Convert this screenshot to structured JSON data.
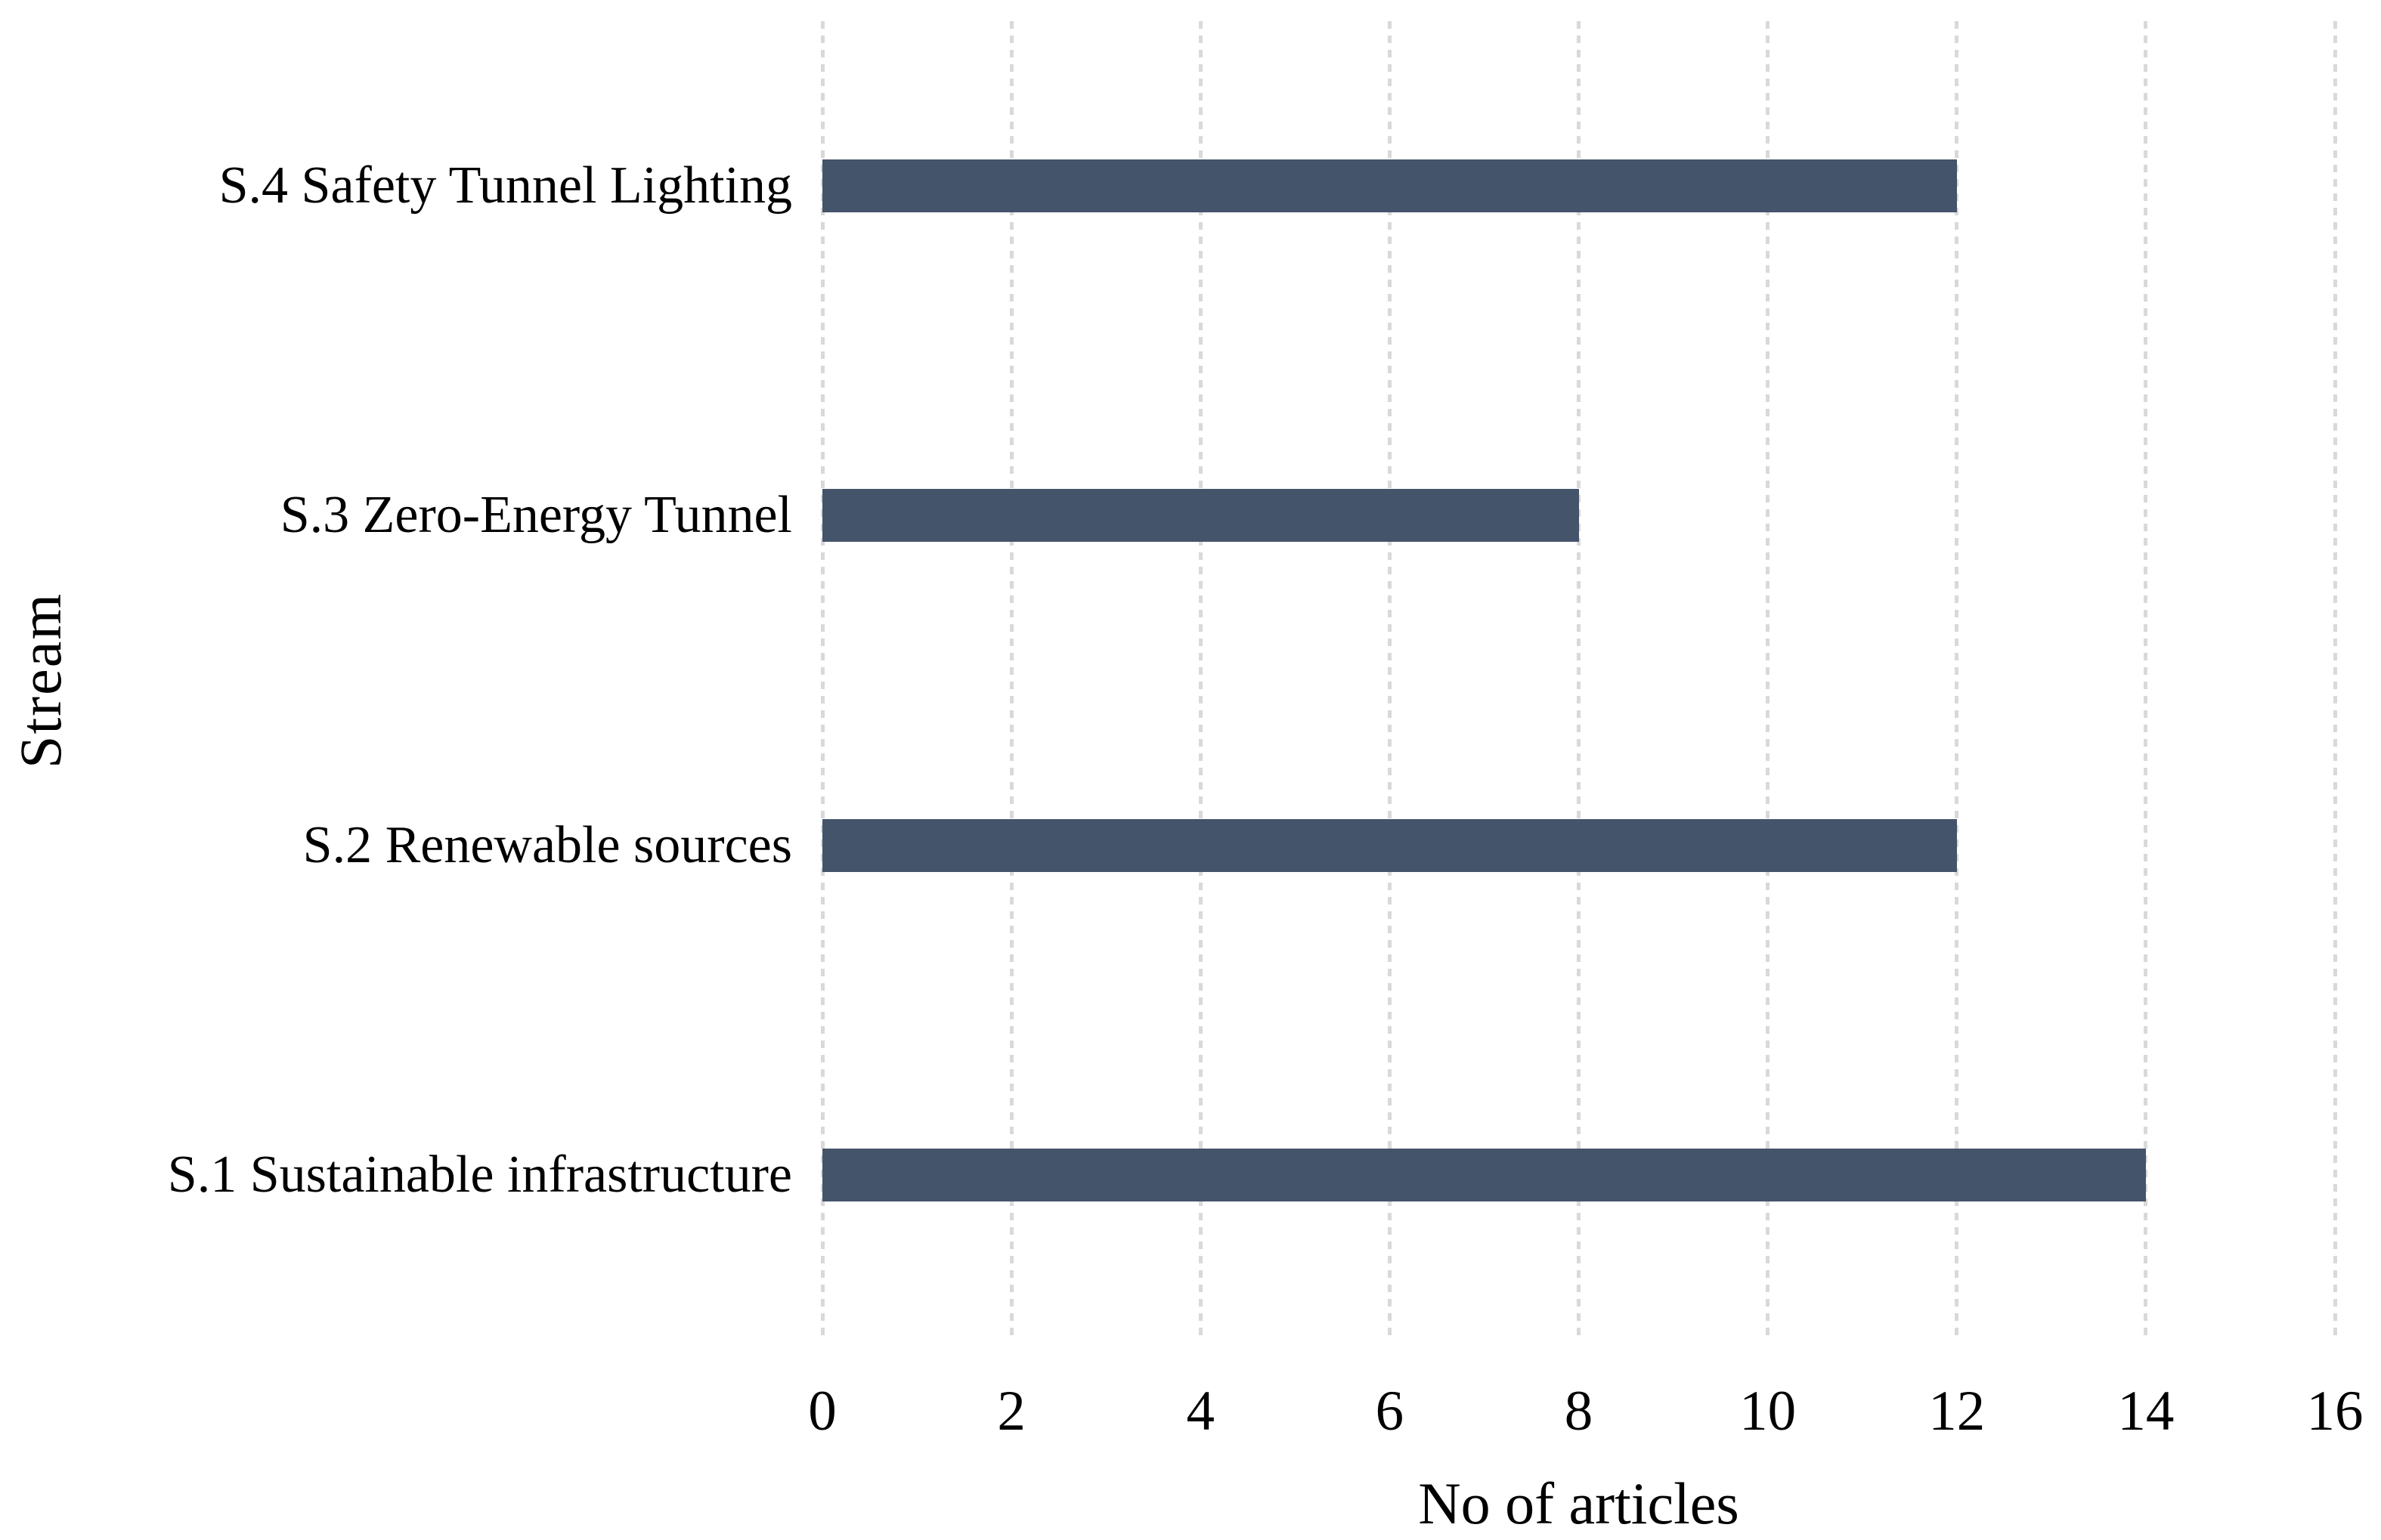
{
  "chart_data": {
    "type": "bar",
    "orientation": "horizontal",
    "title": "",
    "categories_top_to_bottom": [
      "S.4 Safety Tunnel Lighting",
      "S.3 Zero-Energy Tunnel",
      "S.2 Renewable sources",
      "S.1 Sustainable infrastructure"
    ],
    "values_top_to_bottom": [
      12,
      8,
      12,
      14
    ],
    "xlabel": "No of articles",
    "ylabel": "Stream",
    "xlim": [
      0,
      16
    ],
    "xticks": [
      0,
      2,
      4,
      6,
      8,
      10,
      12,
      14,
      16
    ],
    "grid": "vertical-dashed",
    "legend": false,
    "colors": {
      "bar": "#44546A",
      "gridline": "#D9D9D9",
      "text": "#000000",
      "background": "#FFFFFF"
    }
  }
}
